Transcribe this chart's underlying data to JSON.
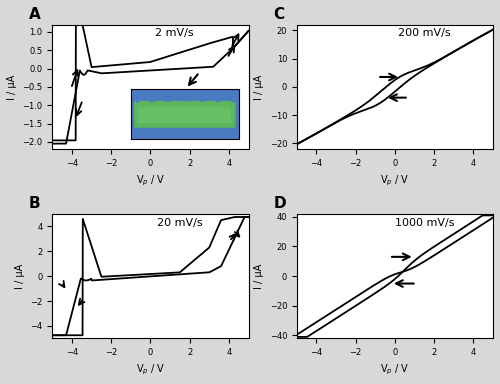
{
  "title_A": "2 mV/s",
  "title_B": "20 mV/s",
  "title_C": "200 mV/s",
  "title_D": "1000 mV/s",
  "label_A": "A",
  "label_B": "B",
  "label_C": "C",
  "label_D": "D",
  "xlabel": "V$_p$ / V",
  "ylabel": "I / μA",
  "xlim": [
    -5,
    5
  ],
  "ylim_A": [
    -2.2,
    1.2
  ],
  "ylim_B": [
    -5.0,
    5.0
  ],
  "ylim_C": [
    -22,
    22
  ],
  "ylim_D": [
    -42,
    42
  ],
  "xticks": [
    -4,
    -2,
    0,
    2,
    4
  ],
  "yticks_A": [
    -2.0,
    -1.5,
    -1.0,
    -0.5,
    0.0,
    0.5,
    1.0
  ],
  "yticks_B": [
    -4,
    -2,
    0,
    2,
    4
  ],
  "yticks_C": [
    -20,
    -10,
    0,
    10,
    20
  ],
  "yticks_D": [
    -40,
    -20,
    0,
    20,
    40
  ],
  "bg_color": "#d8d8d8",
  "line_color": "black",
  "linewidth": 1.3
}
